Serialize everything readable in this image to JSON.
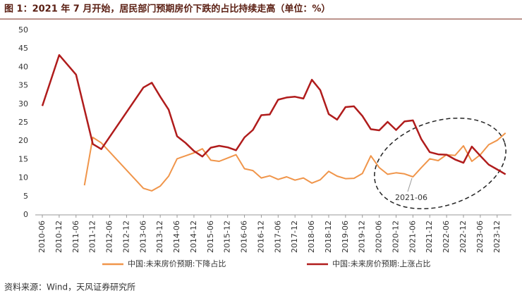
{
  "chart_data": {
    "type": "line",
    "title": "图 1：2021 年 7 月开始，居民部门预期房价下跌的占比持续走高（单位：%）",
    "source": "资料来源：Wind，天风证券研究所",
    "annotation": "2021-06",
    "ylim": [
      0,
      50
    ],
    "yticks": [
      0,
      5,
      10,
      15,
      20,
      25,
      30,
      35,
      40,
      45,
      50
    ],
    "xticks": [
      "2010-06",
      "2010-12",
      "2011-06",
      "2011-12",
      "2012-06",
      "2012-12",
      "2013-06",
      "2013-12",
      "2014-06",
      "2014-12",
      "2015-06",
      "2015-12",
      "2016-06",
      "2016-12",
      "2017-06",
      "2017-12",
      "2018-06",
      "2018-12",
      "2019-06",
      "2019-12",
      "2020-06",
      "2020-12",
      "2021-06",
      "2021-12",
      "2022-06",
      "2022-12",
      "2023-06",
      "2023-12"
    ],
    "series": [
      {
        "name": "中国:未来房价预期:下降占比",
        "color": "#f0954a",
        "x": [
          "2011-09",
          "2011-12",
          "2012-03",
          "2013-06",
          "2013-09",
          "2013-12",
          "2014-03",
          "2014-06",
          "2014-09",
          "2014-12",
          "2015-03",
          "2015-06",
          "2015-09",
          "2015-12",
          "2016-03",
          "2016-06",
          "2016-09",
          "2016-12",
          "2017-03",
          "2017-06",
          "2017-09",
          "2017-12",
          "2018-03",
          "2018-06",
          "2018-09",
          "2018-12",
          "2019-03",
          "2019-06",
          "2019-09",
          "2019-12",
          "2020-03",
          "2020-06",
          "2020-09",
          "2020-12",
          "2021-03",
          "2021-06",
          "2021-09",
          "2021-12",
          "2022-03",
          "2022-06",
          "2022-09",
          "2022-12",
          "2023-03",
          "2023-06",
          "2023-09",
          "2023-12",
          "2024-03"
        ],
        "values": [
          8,
          21,
          19.5,
          7.2,
          6.5,
          7.8,
          10.5,
          15.2,
          16,
          16.8,
          17.9,
          14.8,
          14.5,
          15.4,
          16.3,
          12.5,
          12,
          10,
          10.6,
          9.6,
          10.3,
          9.4,
          10,
          8.6,
          9.5,
          11.8,
          10.5,
          9.8,
          9.9,
          11.2,
          16,
          12.8,
          11,
          11.4,
          11.1,
          10.3,
          12.8,
          15.2,
          14.7,
          16.3,
          16.1,
          18.7,
          14.5,
          16.3,
          19,
          20.2,
          22.2
        ]
      },
      {
        "name": "中国:未来房价预期:上涨占比",
        "color": "#b01c1c",
        "x": [
          "2010-06",
          "2010-12",
          "2011-06",
          "2011-12",
          "2012-03",
          "2013-06",
          "2013-09",
          "2013-12",
          "2014-03",
          "2014-06",
          "2014-09",
          "2014-12",
          "2015-03",
          "2015-06",
          "2015-09",
          "2015-12",
          "2016-03",
          "2016-06",
          "2016-09",
          "2016-12",
          "2017-03",
          "2017-06",
          "2017-09",
          "2017-12",
          "2018-03",
          "2018-06",
          "2018-09",
          "2018-12",
          "2019-03",
          "2019-06",
          "2019-09",
          "2019-12",
          "2020-03",
          "2020-06",
          "2020-09",
          "2020-12",
          "2021-03",
          "2021-06",
          "2021-09",
          "2021-12",
          "2022-03",
          "2022-06",
          "2022-09",
          "2022-12",
          "2023-03",
          "2023-06",
          "2023-09",
          "2023-12",
          "2024-03"
        ],
        "values": [
          29.5,
          43.3,
          38,
          19.2,
          17.8,
          34.5,
          35.8,
          32,
          28.5,
          21.3,
          19.5,
          17.3,
          15.8,
          18.2,
          18.7,
          18.3,
          17.5,
          21,
          23,
          27,
          27.2,
          31.2,
          31.8,
          32,
          31.5,
          36.6,
          33.8,
          27.3,
          25.8,
          29.2,
          29.4,
          26.8,
          23.2,
          22.9,
          25.2,
          23,
          25.3,
          25.6,
          20.5,
          17,
          16.4,
          16.3,
          15,
          14.1,
          18.5,
          16,
          13.6,
          12.3,
          11
        ]
      }
    ]
  }
}
